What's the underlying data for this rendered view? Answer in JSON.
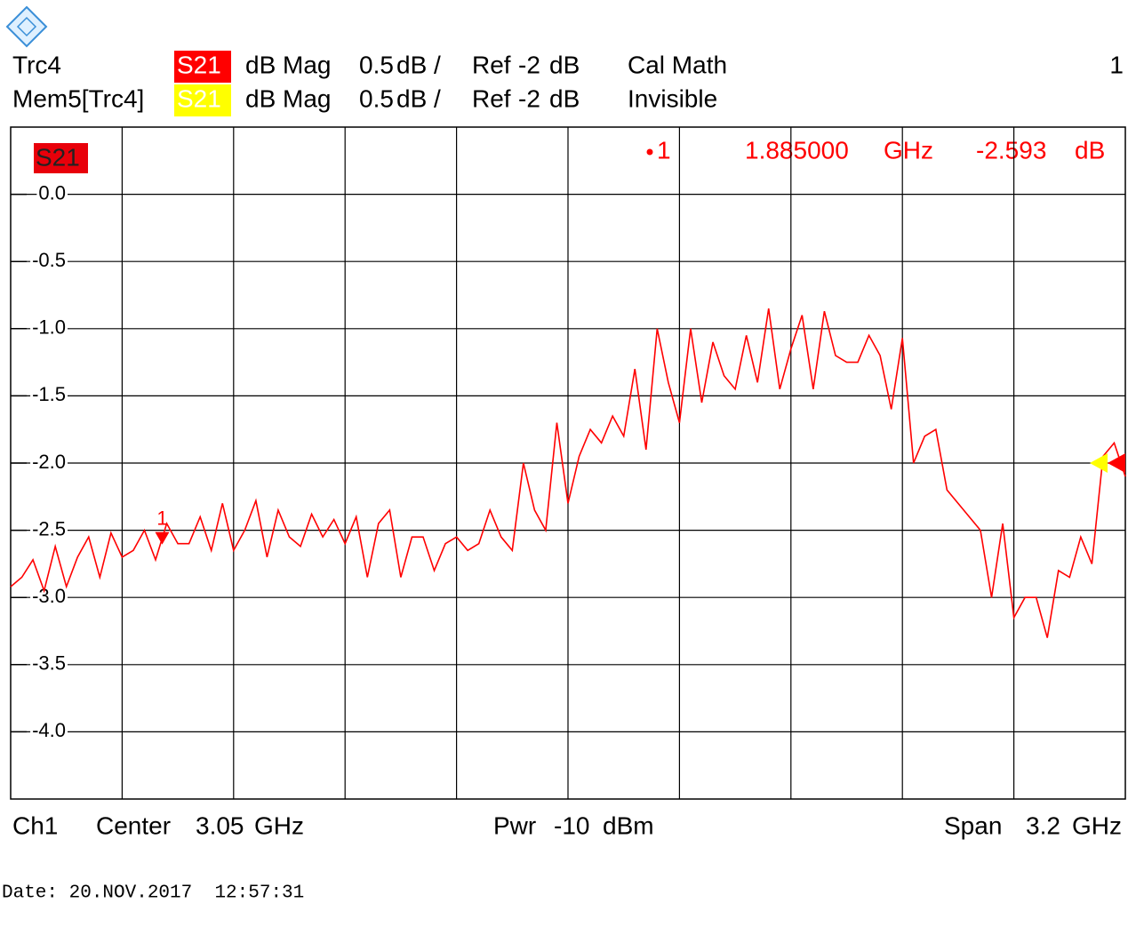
{
  "chart_data": {
    "type": "line",
    "channel_number": "1",
    "series": [
      {
        "name": "Trc4",
        "param": "S21",
        "format": "dB Mag",
        "scale": 0.5,
        "scale_unit": "dB /",
        "ref_label": "Ref",
        "ref": -2,
        "ref_unit": "dB",
        "info": "Cal Math",
        "color": "#ff0000",
        "values": [
          -2.92,
          -2.85,
          -2.72,
          -2.95,
          -2.62,
          -2.92,
          -2.7,
          -2.55,
          -2.85,
          -2.52,
          -2.7,
          -2.65,
          -2.5,
          -2.72,
          -2.45,
          -2.6,
          -2.6,
          -2.4,
          -2.65,
          -2.3,
          -2.65,
          -2.5,
          -2.28,
          -2.7,
          -2.35,
          -2.55,
          -2.62,
          -2.38,
          -2.55,
          -2.42,
          -2.6,
          -2.4,
          -2.85,
          -2.45,
          -2.35,
          -2.85,
          -2.55,
          -2.55,
          -2.8,
          -2.6,
          -2.55,
          -2.65,
          -2.6,
          -2.35,
          -2.55,
          -2.65,
          -2.0,
          -2.35,
          -2.5,
          -1.7,
          -2.3,
          -1.95,
          -1.75,
          -1.85,
          -1.65,
          -1.8,
          -1.3,
          -1.9,
          -1.0,
          -1.4,
          -1.7,
          -1.0,
          -1.55,
          -1.1,
          -1.35,
          -1.45,
          -1.05,
          -1.4,
          -0.85,
          -1.45,
          -1.15,
          -0.9,
          -1.45,
          -0.87,
          -1.2,
          -1.25,
          -1.25,
          -1.05,
          -1.2,
          -1.6,
          -1.07,
          -2.0,
          -1.8,
          -1.75,
          -2.2,
          -2.3,
          -2.4,
          -2.5,
          -3.0,
          -2.45,
          -3.15,
          -3.0,
          -3.0,
          -3.3,
          -2.8,
          -2.85,
          -2.55,
          -2.75,
          -1.95,
          -1.85,
          -2.1
        ]
      },
      {
        "name": "Mem5[Trc4]",
        "param": "S21",
        "format": "dB Mag",
        "scale": 0.5,
        "scale_unit": "dB /",
        "ref_label": "Ref",
        "ref": -2,
        "ref_unit": "dB",
        "info": "Invisible",
        "color": "#ffff00"
      }
    ],
    "x": [
      1.45,
      1.482,
      1.514,
      1.546,
      1.578,
      1.61,
      1.642,
      1.674,
      1.706,
      1.738,
      1.77,
      1.802,
      1.834,
      1.866,
      1.898,
      1.93,
      1.962,
      1.994,
      2.026,
      2.058,
      2.09,
      2.122,
      2.154,
      2.186,
      2.218,
      2.25,
      2.282,
      2.314,
      2.346,
      2.378,
      2.41,
      2.442,
      2.474,
      2.506,
      2.538,
      2.57,
      2.602,
      2.634,
      2.666,
      2.698,
      2.73,
      2.762,
      2.794,
      2.826,
      2.858,
      2.89,
      2.922,
      2.954,
      2.986,
      3.018,
      3.05,
      3.082,
      3.114,
      3.146,
      3.178,
      3.21,
      3.242,
      3.274,
      3.306,
      3.338,
      3.37,
      3.402,
      3.434,
      3.466,
      3.498,
      3.53,
      3.562,
      3.594,
      3.626,
      3.658,
      3.69,
      3.722,
      3.754,
      3.786,
      3.818,
      3.85,
      3.882,
      3.914,
      3.946,
      3.978,
      4.01,
      4.042,
      4.074,
      4.106,
      4.138,
      4.17,
      4.202,
      4.234,
      4.266,
      4.298,
      4.33,
      4.362,
      4.394,
      4.426,
      4.458,
      4.49,
      4.522,
      4.554,
      4.586,
      4.618,
      4.65
    ],
    "ylim": [
      -4.5,
      0.5
    ],
    "yticks": [
      {
        "value": 0,
        "label": "0.0"
      },
      -0.5,
      {
        "value": -1,
        "label": "-1.0"
      },
      -1.5,
      {
        "value": -2,
        "label": "-2.0"
      },
      -2.5,
      {
        "value": -3,
        "label": "-3.0"
      },
      -3.5,
      {
        "value": -4,
        "label": "-4.0"
      }
    ],
    "grid": true,
    "marker": {
      "name": "1",
      "x": {
        "value": 1.885,
        "label": "1.885000"
      },
      "x_unit": "GHz",
      "value": -2.593,
      "unit": "dB"
    },
    "footer": {
      "channel": "Ch1",
      "center_label": "Center",
      "center": 3.05,
      "center_unit": "GHz",
      "power_label": "Pwr",
      "power": -10,
      "power_unit": "dBm",
      "span_label": "Span",
      "span": 3.2,
      "span_unit": "GHz"
    },
    "date": "Date: 20.NOV.2017  12:57:31"
  }
}
